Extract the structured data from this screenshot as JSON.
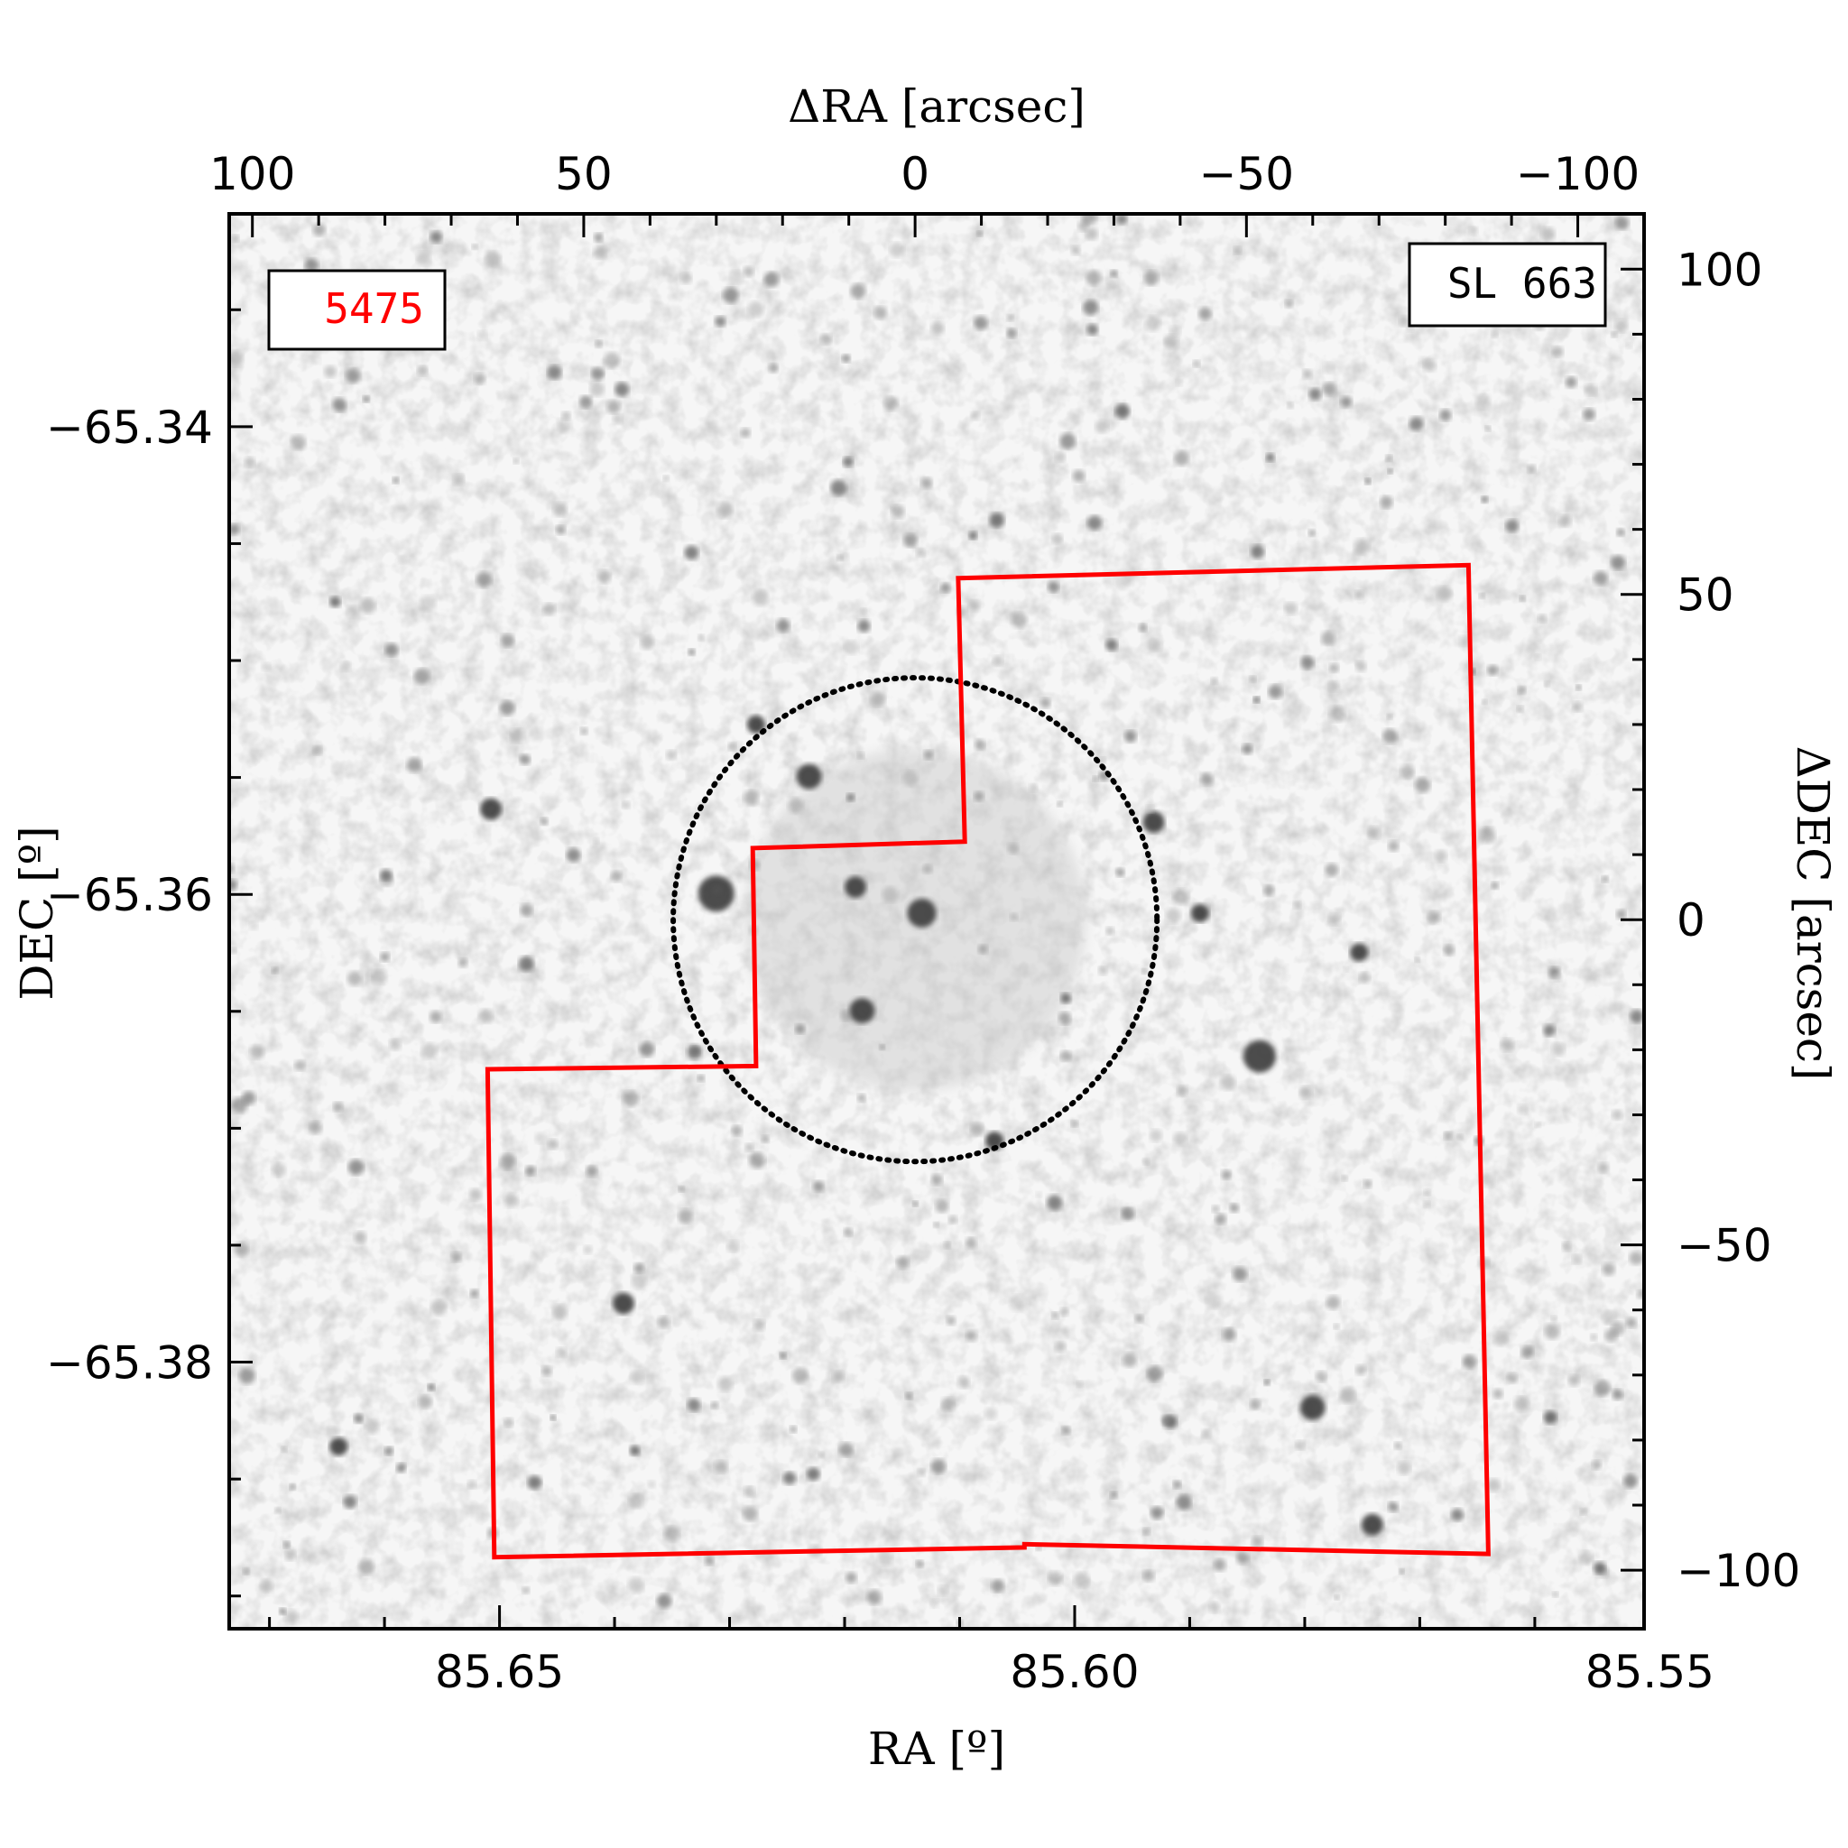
{
  "chart_data": {
    "type": "scatter",
    "description_type": "astronomical image with field footprint overlay",
    "title": "",
    "xlabel": "RA [º]",
    "ylabel": "DEC [º]",
    "x2label": "ΔRA [arcsec]",
    "y2label": "ΔDEC [arcsec]",
    "xlim": [
      85.6735,
      85.5505
    ],
    "ylim": [
      -65.3914,
      -65.3309
    ],
    "x2lim": [
      103.5,
      -110.0
    ],
    "y2lim": [
      -109.0,
      108.5
    ],
    "x_ticks": [
      85.65,
      85.6,
      85.55
    ],
    "x_tick_labels": [
      "85.65",
      "85.60",
      "85.55"
    ],
    "y_ticks": [
      -65.34,
      -65.36,
      -65.38
    ],
    "y_tick_labels": [
      "−65.34",
      "−65.36",
      "−65.38"
    ],
    "x2_ticks": [
      100,
      50,
      0,
      -50,
      -100
    ],
    "x2_tick_labels": [
      "100",
      "50",
      "0",
      "−50",
      "−100"
    ],
    "y2_ticks": [
      100,
      50,
      0,
      -50,
      -100
    ],
    "y2_tick_labels": [
      "100",
      "50",
      "0",
      "−50",
      "−100"
    ],
    "footprint_label": "5475",
    "object_label": "SL 663",
    "footprint_polygon": [
      [
        -6.5,
        52.5
      ],
      [
        -83.5,
        54.5
      ],
      [
        -86.5,
        -97.5
      ],
      [
        -16.5,
        -96.0
      ],
      [
        -16.5,
        -96.5
      ],
      [
        63.5,
        -98.0
      ],
      [
        64.5,
        -23.0
      ],
      [
        24.0,
        -22.5
      ],
      [
        24.5,
        11.0
      ],
      [
        -7.5,
        12.0
      ]
    ],
    "cluster_circle": {
      "center": [
        0,
        0
      ],
      "radius": 36.5
    },
    "bright_stars": [
      [
        30,
        4,
        10
      ],
      [
        16,
        22,
        7
      ],
      [
        -1,
        1,
        8
      ],
      [
        9,
        5,
        6
      ],
      [
        8,
        -14,
        7
      ],
      [
        -52,
        -21,
        9
      ],
      [
        -60,
        -75,
        7
      ],
      [
        -69,
        -93,
        6
      ],
      [
        -12,
        -34,
        5
      ],
      [
        -36,
        15,
        6
      ],
      [
        64,
        17,
        6
      ],
      [
        44,
        -59,
        6
      ],
      [
        -67,
        -5,
        5
      ],
      [
        -43,
        1,
        5
      ],
      [
        87,
        -81,
        5
      ],
      [
        24,
        30,
        5
      ]
    ],
    "grid": false,
    "legend": "none",
    "colors": {
      "footprint": "#ff0000",
      "circle": "#000000",
      "label_red": "#ff0000"
    }
  }
}
